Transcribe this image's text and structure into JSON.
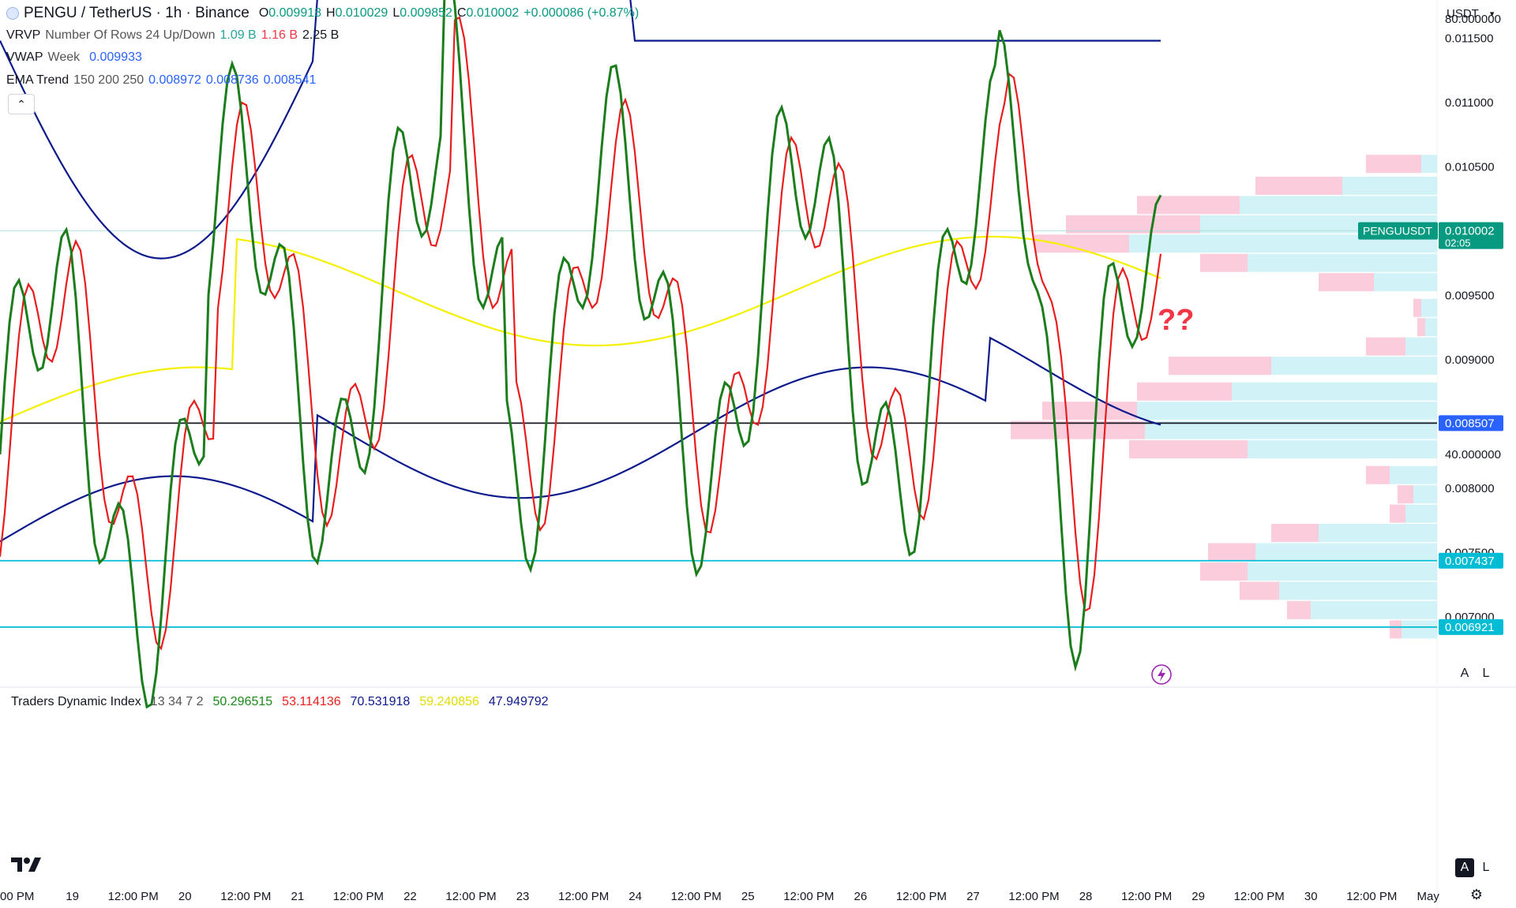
{
  "header": {
    "symbol_title": "PENGU / TetherUS · 1h · Binance",
    "ohlc": {
      "o_label": "O",
      "o": "0.009918",
      "h_label": "H",
      "h": "0.010029",
      "l_label": "L",
      "l": "0.009852",
      "c_label": "C",
      "c": "0.010002",
      "change": "+0.000086 (+0.87%)"
    },
    "currency": "USDT"
  },
  "indicators": {
    "vrvp": {
      "name": "VRVP",
      "params": "Number Of Rows 24 Up/Down",
      "v1": "1.09 B",
      "v2": "1.16 B",
      "v3": "2.25 B"
    },
    "vwap": {
      "name": "VWAP",
      "params": "Week",
      "value": "0.009933"
    },
    "ema": {
      "name": "EMA Trend",
      "params": "150 200 250",
      "v1": "0.008972",
      "v2": "0.008736",
      "v3": "0.008541"
    },
    "tdi": {
      "name": "Traders Dynamic Index",
      "params": "13 34 7 2",
      "v1": "50.296515",
      "v2": "53.114136",
      "v3": "70.531918",
      "v4": "59.240856",
      "v5": "47.949792"
    }
  },
  "annotation": {
    "text": "??"
  },
  "price_axis": {
    "ticks": [
      "0.011500",
      "0.011000",
      "0.010500",
      "0.010000",
      "0.009500",
      "0.009000",
      "0.008500",
      "0.008000",
      "0.007500",
      "0.007000"
    ],
    "last_price_symbol": "PENGUUSDT",
    "last_price": "0.010002",
    "countdown": "02:05",
    "levels": [
      "0.008507",
      "0.007437",
      "0.006921"
    ]
  },
  "tdi_axis": {
    "ticks": [
      "80.000000",
      "60.000000",
      "40.000000"
    ]
  },
  "time_axis": {
    "labels": [
      "00 PM",
      "19",
      "12:00 PM",
      "20",
      "12:00 PM",
      "21",
      "12:00 PM",
      "22",
      "12:00 PM",
      "23",
      "12:00 PM",
      "24",
      "12:00 PM",
      "25",
      "12:00 PM",
      "26",
      "12:00 PM",
      "27",
      "12:00 PM",
      "28",
      "12:00 PM",
      "29",
      "12:00 PM",
      "30",
      "12:00 PM",
      "May"
    ]
  },
  "buttons": {
    "collapse_icon": "chevron-up-icon",
    "auto_scale": "A",
    "log_scale": "L",
    "auto_scale_lower": "A",
    "log_scale_lower": "L"
  },
  "colors": {
    "up": "#089981",
    "down": "#f23645",
    "vwap": "#2962ff",
    "ema_band": "#a5d6a7",
    "channel": "#f7a26a",
    "level_line": "#00bcd4",
    "support_line": "#131722",
    "tdi_green": "#1b7d1b",
    "tdi_red": "#e81e1e",
    "tdi_yellow": "#f5f000",
    "tdi_band": "#0d1a8c"
  },
  "chart_data": {
    "type": "candlestick",
    "symbol": "PENGUUSDT",
    "timeframe": "1h",
    "x_range": [
      "18 12:00 PM",
      "May"
    ],
    "ylim": [
      0.0066,
      0.0118
    ],
    "price_path": [
      [
        "18 18:00",
        0.00775
      ],
      [
        "19 00:00",
        0.00745
      ],
      [
        "19 06:00",
        0.00725
      ],
      [
        "19 12:00",
        0.00715
      ],
      [
        "19 18:00",
        0.00735
      ],
      [
        "20 00:00",
        0.007
      ],
      [
        "20 06:00",
        0.0071
      ],
      [
        "20 12:00",
        0.00735
      ],
      [
        "20 18:00",
        0.00755
      ],
      [
        "21 00:00",
        0.00765
      ],
      [
        "21 06:00",
        0.00765
      ],
      [
        "21 12:00",
        0.00778
      ],
      [
        "21 18:00",
        0.00775
      ],
      [
        "22 00:00",
        0.00765
      ],
      [
        "22 06:00",
        0.0078
      ],
      [
        "22 12:00",
        0.0081
      ],
      [
        "22 15:00",
        0.0088
      ],
      [
        "22 18:00",
        0.0085
      ],
      [
        "23 00:00",
        0.00835
      ],
      [
        "23 06:00",
        0.00845
      ],
      [
        "23 12:00",
        0.0086
      ],
      [
        "24 00:00",
        0.00845
      ],
      [
        "24 12:00",
        0.0086
      ],
      [
        "25 00:00",
        0.00855
      ],
      [
        "25 12:00",
        0.0085
      ],
      [
        "26 00:00",
        0.0085
      ],
      [
        "26 12:00",
        0.00865
      ],
      [
        "26 18:00",
        0.0088
      ],
      [
        "27 00:00",
        0.0087
      ],
      [
        "27 06:00",
        0.00895
      ],
      [
        "27 09:00",
        0.00975
      ],
      [
        "27 12:00",
        0.0099
      ],
      [
        "27 18:00",
        0.0096
      ],
      [
        "28 00:00",
        0.00995
      ],
      [
        "28 06:00",
        0.0099
      ],
      [
        "28 12:00",
        0.0101
      ],
      [
        "28 18:00",
        0.01
      ]
    ],
    "vwap_path": [
      [
        "18 12:00",
        0.0074
      ],
      [
        "20 00:00",
        0.00738
      ],
      [
        "20 01:00",
        0.007
      ],
      [
        "21 00:00",
        0.0074
      ],
      [
        "22 00:00",
        0.00757
      ],
      [
        "22 12:00",
        0.0077
      ],
      [
        "23 00:00",
        0.0081
      ],
      [
        "24 00:00",
        0.00815
      ],
      [
        "25 00:00",
        0.0082
      ],
      [
        "26 00:00",
        0.00822
      ],
      [
        "27 00:00",
        0.0083
      ],
      [
        "27 01:00",
        0.009
      ],
      [
        "27 04:00",
        0.00975
      ],
      [
        "28 00:00",
        0.0098
      ],
      [
        "28 18:00",
        0.00993
      ]
    ],
    "ema_band": [
      [
        "18 12:00",
        0.00705,
        0.00735
      ],
      [
        "20 12:00",
        0.0071,
        0.00738
      ],
      [
        "22 00:00",
        0.00725,
        0.00745
      ],
      [
        "23 00:00",
        0.0075,
        0.0077
      ],
      [
        "25 00:00",
        0.00785,
        0.00805
      ],
      [
        "27 00:00",
        0.00815,
        0.0084
      ],
      [
        "28 18:00",
        0.00852,
        0.00897
      ]
    ],
    "ascending_channel": {
      "lower": [
        [
          "27 12:00",
          0.00945
        ],
        [
          "29 00:00",
          0.01035
        ]
      ],
      "upper": [
        [
          "27 12:00",
          0.01034
        ],
        [
          "29 00:00",
          0.01103
        ]
      ]
    },
    "horizontal_levels": [
      0.008507,
      0.007437,
      0.006921
    ],
    "volume_profile_note": "VRVP histogram, 24 rows, up/down volume",
    "tdi": {
      "ylim": [
        20,
        90
      ],
      "rsi_price_line_color": "green",
      "signal_line_color": "red",
      "market_base_color": "yellow",
      "bands_color": "navy",
      "last_values": [
        50.296515,
        53.114136,
        70.531918,
        59.240856,
        47.949792
      ]
    }
  }
}
